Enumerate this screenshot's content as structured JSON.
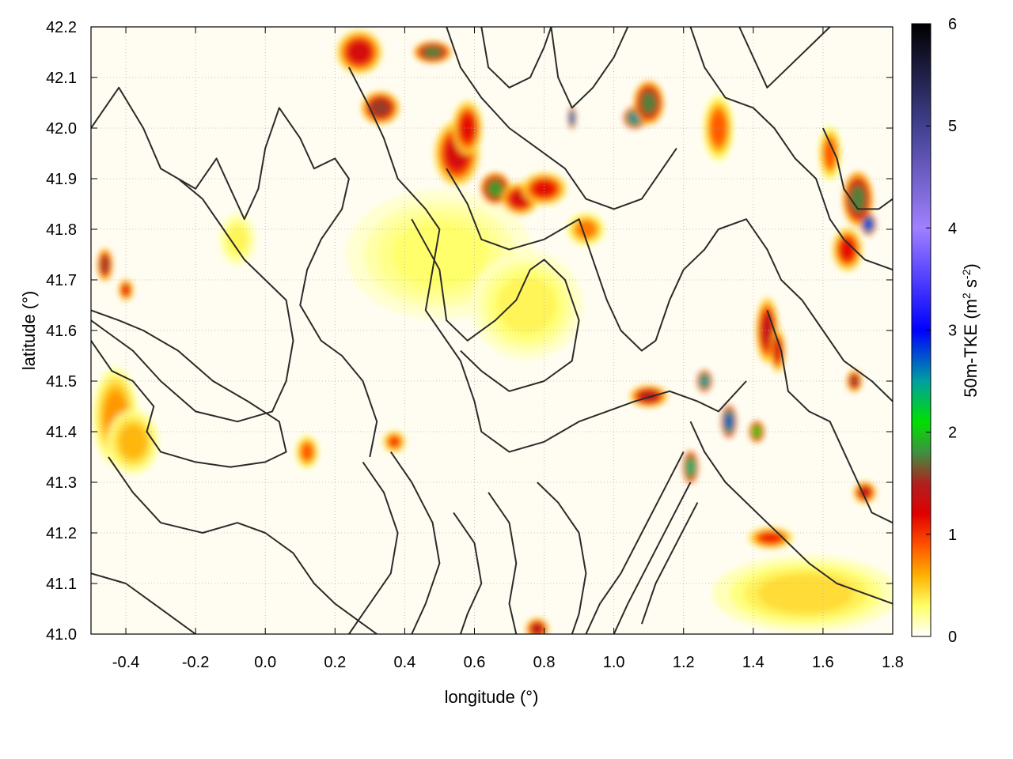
{
  "chart_data": {
    "type": "heatmap",
    "title": "",
    "xlabel": "longitude (°)",
    "ylabel": "latitude (°)",
    "xlim": [
      -0.5,
      1.8
    ],
    "ylim": [
      41.0,
      42.2
    ],
    "x_ticks": [
      -0.4,
      -0.2,
      0.0,
      0.2,
      0.4,
      0.6,
      0.8,
      1.0,
      1.2,
      1.4,
      1.6,
      1.8
    ],
    "x_tick_labels": [
      "-0.4",
      "-0.2",
      "0.0",
      "0.2",
      "0.4",
      "0.6",
      "0.8",
      "1.0",
      "1.2",
      "1.4",
      "1.6",
      "1.8"
    ],
    "y_ticks": [
      41.0,
      41.1,
      41.2,
      41.3,
      41.4,
      41.5,
      41.6,
      41.7,
      41.8,
      41.9,
      42.0,
      42.1,
      42.2
    ],
    "y_tick_labels": [
      "41.0",
      "41.1",
      "41.2",
      "41.3",
      "41.4",
      "41.5",
      "41.6",
      "41.7",
      "41.8",
      "41.9",
      "42.0",
      "42.1",
      "42.2"
    ],
    "grid": true,
    "colorbar": {
      "label": "50m-TKE",
      "unit_prefix": "(m",
      "unit_sup1": "2",
      "unit_mid": " s",
      "unit_sup2": "-2",
      "unit_suffix": ")",
      "range": [
        0,
        6
      ],
      "ticks": [
        0,
        1,
        2,
        3,
        4,
        5,
        6
      ],
      "tick_labels": [
        "0",
        "1",
        "2",
        "3",
        "4",
        "5",
        "6"
      ],
      "stops": [
        {
          "value": 0.0,
          "color": "#ffffff"
        },
        {
          "value": 0.3,
          "color": "#ffff66"
        },
        {
          "value": 0.6,
          "color": "#ffb000"
        },
        {
          "value": 0.9,
          "color": "#ff5000"
        },
        {
          "value": 1.2,
          "color": "#e00000"
        },
        {
          "value": 1.5,
          "color": "#b02020"
        },
        {
          "value": 1.8,
          "color": "#409040"
        },
        {
          "value": 2.1,
          "color": "#00e000"
        },
        {
          "value": 2.5,
          "color": "#00a0a0"
        },
        {
          "value": 3.0,
          "color": "#0000ff"
        },
        {
          "value": 4.0,
          "color": "#a080ff"
        },
        {
          "value": 5.0,
          "color": "#404090"
        },
        {
          "value": 6.0,
          "color": "#000000"
        }
      ]
    },
    "hotspots": [
      {
        "lon": -0.43,
        "lat": 41.43,
        "value": 0.7,
        "rx": 0.06,
        "ry": 0.09
      },
      {
        "lon": -0.38,
        "lat": 41.38,
        "value": 0.6,
        "rx": 0.07,
        "ry": 0.06
      },
      {
        "lon": -0.08,
        "lat": 41.78,
        "value": 0.35,
        "rx": 0.05,
        "ry": 0.05
      },
      {
        "lon": 0.5,
        "lat": 41.75,
        "value": 0.3,
        "rx": 0.25,
        "ry": 0.12
      },
      {
        "lon": 0.75,
        "lat": 41.65,
        "value": 0.35,
        "rx": 0.15,
        "ry": 0.1
      },
      {
        "lon": 0.27,
        "lat": 42.15,
        "value": 1.3,
        "rx": 0.06,
        "ry": 0.04
      },
      {
        "lon": 0.33,
        "lat": 42.04,
        "value": 1.6,
        "rx": 0.05,
        "ry": 0.03
      },
      {
        "lon": 0.48,
        "lat": 42.15,
        "value": 1.8,
        "rx": 0.05,
        "ry": 0.02
      },
      {
        "lon": 0.55,
        "lat": 41.95,
        "value": 1.3,
        "rx": 0.06,
        "ry": 0.06
      },
      {
        "lon": 0.58,
        "lat": 42.0,
        "value": 1.2,
        "rx": 0.04,
        "ry": 0.05
      },
      {
        "lon": 0.66,
        "lat": 41.88,
        "value": 1.9,
        "rx": 0.04,
        "ry": 0.03
      },
      {
        "lon": 0.73,
        "lat": 41.86,
        "value": 1.3,
        "rx": 0.05,
        "ry": 0.03
      },
      {
        "lon": 0.88,
        "lat": 42.02,
        "value": 2.8,
        "rx": 0.01,
        "ry": 0.02
      },
      {
        "lon": 1.06,
        "lat": 42.02,
        "value": 2.6,
        "rx": 0.03,
        "ry": 0.02
      },
      {
        "lon": 1.1,
        "lat": 42.05,
        "value": 1.8,
        "rx": 0.04,
        "ry": 0.04
      },
      {
        "lon": 0.8,
        "lat": 41.88,
        "value": 1.2,
        "rx": 0.06,
        "ry": 0.03
      },
      {
        "lon": -0.46,
        "lat": 41.73,
        "value": 1.6,
        "rx": 0.02,
        "ry": 0.03
      },
      {
        "lon": -0.4,
        "lat": 41.68,
        "value": 1.2,
        "rx": 0.02,
        "ry": 0.02
      },
      {
        "lon": 1.7,
        "lat": 41.86,
        "value": 1.8,
        "rx": 0.04,
        "ry": 0.05
      },
      {
        "lon": 1.73,
        "lat": 41.81,
        "value": 3.0,
        "rx": 0.02,
        "ry": 0.02
      },
      {
        "lon": 1.67,
        "lat": 41.76,
        "value": 1.2,
        "rx": 0.04,
        "ry": 0.04
      },
      {
        "lon": 1.44,
        "lat": 41.6,
        "value": 1.4,
        "rx": 0.03,
        "ry": 0.06
      },
      {
        "lon": 1.47,
        "lat": 41.56,
        "value": 1.3,
        "rx": 0.02,
        "ry": 0.04
      },
      {
        "lon": 1.26,
        "lat": 41.5,
        "value": 2.6,
        "rx": 0.02,
        "ry": 0.02
      },
      {
        "lon": 1.33,
        "lat": 41.42,
        "value": 2.8,
        "rx": 0.02,
        "ry": 0.03
      },
      {
        "lon": 1.41,
        "lat": 41.4,
        "value": 2.1,
        "rx": 0.02,
        "ry": 0.02
      },
      {
        "lon": 1.22,
        "lat": 41.33,
        "value": 2.4,
        "rx": 0.02,
        "ry": 0.03
      },
      {
        "lon": 1.1,
        "lat": 41.47,
        "value": 1.5,
        "rx": 0.05,
        "ry": 0.02
      },
      {
        "lon": 1.69,
        "lat": 41.5,
        "value": 1.6,
        "rx": 0.02,
        "ry": 0.02
      },
      {
        "lon": 1.72,
        "lat": 41.28,
        "value": 1.4,
        "rx": 0.03,
        "ry": 0.02
      },
      {
        "lon": 1.45,
        "lat": 41.19,
        "value": 1.1,
        "rx": 0.06,
        "ry": 0.02
      },
      {
        "lon": 0.78,
        "lat": 41.01,
        "value": 1.5,
        "rx": 0.03,
        "ry": 0.02
      },
      {
        "lon": 0.37,
        "lat": 41.38,
        "value": 1.0,
        "rx": 0.03,
        "ry": 0.02
      },
      {
        "lon": 0.12,
        "lat": 41.36,
        "value": 0.9,
        "rx": 0.03,
        "ry": 0.03
      },
      {
        "lon": 1.55,
        "lat": 41.08,
        "value": 0.45,
        "rx": 0.25,
        "ry": 0.07
      },
      {
        "lon": 0.92,
        "lat": 41.8,
        "value": 0.8,
        "rx": 0.05,
        "ry": 0.03
      },
      {
        "lon": 1.62,
        "lat": 41.95,
        "value": 0.9,
        "rx": 0.03,
        "ry": 0.05
      },
      {
        "lon": 1.3,
        "lat": 42.0,
        "value": 0.9,
        "rx": 0.04,
        "ry": 0.06
      }
    ],
    "contours": [
      [
        [
          -0.5,
          42.0
        ],
        [
          -0.42,
          42.08
        ],
        [
          -0.35,
          42.0
        ],
        [
          -0.3,
          41.92
        ],
        [
          -0.2,
          41.88
        ],
        [
          -0.14,
          41.94
        ],
        [
          -0.1,
          41.88
        ],
        [
          -0.06,
          41.82
        ],
        [
          -0.02,
          41.88
        ],
        [
          0.0,
          41.96
        ],
        [
          0.04,
          42.04
        ],
        [
          0.1,
          41.98
        ],
        [
          0.14,
          41.92
        ],
        [
          0.2,
          41.94
        ],
        [
          0.24,
          41.9
        ],
        [
          0.22,
          41.84
        ],
        [
          0.16,
          41.78
        ],
        [
          0.12,
          41.72
        ],
        [
          0.1,
          41.65
        ],
        [
          0.16,
          41.58
        ],
        [
          0.22,
          41.55
        ],
        [
          0.28,
          41.5
        ],
        [
          0.32,
          41.42
        ],
        [
          0.3,
          41.35
        ]
      ],
      [
        [
          -0.25,
          41.9
        ],
        [
          -0.18,
          41.86
        ],
        [
          -0.12,
          41.8
        ],
        [
          -0.06,
          41.74
        ],
        [
          0.0,
          41.7
        ],
        [
          0.06,
          41.66
        ],
        [
          0.08,
          41.58
        ],
        [
          0.06,
          41.5
        ],
        [
          0.02,
          41.44
        ],
        [
          -0.08,
          41.42
        ],
        [
          -0.2,
          41.44
        ],
        [
          -0.3,
          41.5
        ],
        [
          -0.38,
          41.56
        ],
        [
          -0.46,
          41.6
        ],
        [
          -0.5,
          41.62
        ]
      ],
      [
        [
          -0.5,
          41.58
        ],
        [
          -0.44,
          41.52
        ],
        [
          -0.38,
          41.5
        ],
        [
          -0.32,
          41.45
        ],
        [
          -0.34,
          41.4
        ],
        [
          -0.3,
          41.36
        ],
        [
          -0.2,
          41.34
        ],
        [
          -0.1,
          41.33
        ],
        [
          0.0,
          41.34
        ],
        [
          0.06,
          41.36
        ],
        [
          0.04,
          41.42
        ],
        [
          -0.05,
          41.46
        ],
        [
          -0.15,
          41.5
        ],
        [
          -0.25,
          41.56
        ],
        [
          -0.35,
          41.6
        ],
        [
          -0.42,
          41.62
        ],
        [
          -0.5,
          41.64
        ]
      ],
      [
        [
          0.24,
          42.12
        ],
        [
          0.3,
          42.04
        ],
        [
          0.34,
          41.98
        ],
        [
          0.38,
          41.9
        ],
        [
          0.46,
          41.84
        ],
        [
          0.5,
          41.8
        ],
        [
          0.48,
          41.72
        ],
        [
          0.46,
          41.64
        ],
        [
          0.5,
          41.6
        ],
        [
          0.56,
          41.54
        ],
        [
          0.6,
          41.46
        ],
        [
          0.62,
          41.4
        ],
        [
          0.7,
          41.36
        ],
        [
          0.8,
          41.38
        ],
        [
          0.9,
          41.42
        ],
        [
          0.98,
          41.44
        ],
        [
          1.06,
          41.46
        ],
        [
          1.16,
          41.48
        ],
        [
          1.24,
          41.46
        ],
        [
          1.3,
          41.44
        ],
        [
          1.38,
          41.5
        ]
      ],
      [
        [
          0.52,
          41.92
        ],
        [
          0.58,
          41.85
        ],
        [
          0.62,
          41.78
        ],
        [
          0.7,
          41.76
        ],
        [
          0.8,
          41.78
        ],
        [
          0.9,
          41.82
        ],
        [
          0.94,
          41.74
        ],
        [
          0.98,
          41.66
        ],
        [
          1.02,
          41.6
        ],
        [
          1.08,
          41.56
        ],
        [
          1.12,
          41.58
        ],
        [
          1.16,
          41.66
        ],
        [
          1.2,
          41.72
        ],
        [
          1.26,
          41.76
        ],
        [
          1.3,
          41.8
        ],
        [
          1.38,
          41.82
        ],
        [
          1.44,
          41.76
        ],
        [
          1.48,
          41.7
        ],
        [
          1.54,
          41.66
        ],
        [
          1.6,
          41.6
        ],
        [
          1.66,
          41.54
        ],
        [
          1.74,
          41.5
        ],
        [
          1.8,
          41.46
        ]
      ],
      [
        [
          0.42,
          41.82
        ],
        [
          0.5,
          41.72
        ],
        [
          0.52,
          41.62
        ],
        [
          0.58,
          41.58
        ],
        [
          0.66,
          41.62
        ],
        [
          0.72,
          41.66
        ],
        [
          0.76,
          41.72
        ],
        [
          0.8,
          41.74
        ],
        [
          0.86,
          41.7
        ],
        [
          0.9,
          41.62
        ],
        [
          0.88,
          41.54
        ],
        [
          0.8,
          41.5
        ],
        [
          0.7,
          41.48
        ],
        [
          0.62,
          41.52
        ],
        [
          0.56,
          41.56
        ]
      ],
      [
        [
          0.36,
          41.36
        ],
        [
          0.42,
          41.3
        ],
        [
          0.48,
          41.22
        ],
        [
          0.5,
          41.14
        ],
        [
          0.46,
          41.06
        ],
        [
          0.42,
          41.0
        ]
      ],
      [
        [
          0.28,
          41.34
        ],
        [
          0.34,
          41.28
        ],
        [
          0.38,
          41.2
        ],
        [
          0.36,
          41.12
        ],
        [
          0.3,
          41.06
        ],
        [
          0.24,
          41.0
        ]
      ],
      [
        [
          0.54,
          41.24
        ],
        [
          0.6,
          41.18
        ],
        [
          0.62,
          41.1
        ],
        [
          0.58,
          41.04
        ],
        [
          0.56,
          41.0
        ]
      ],
      [
        [
          0.64,
          41.28
        ],
        [
          0.7,
          41.22
        ],
        [
          0.72,
          41.14
        ],
        [
          0.7,
          41.06
        ],
        [
          0.72,
          41.0
        ]
      ],
      [
        [
          0.78,
          41.3
        ],
        [
          0.84,
          41.26
        ],
        [
          0.9,
          41.2
        ],
        [
          0.92,
          41.12
        ],
        [
          0.9,
          41.04
        ],
        [
          0.88,
          41.0
        ]
      ],
      [
        [
          1.2,
          41.36
        ],
        [
          1.14,
          41.28
        ],
        [
          1.08,
          41.2
        ],
        [
          1.02,
          41.12
        ],
        [
          0.96,
          41.06
        ],
        [
          0.92,
          41.0
        ]
      ],
      [
        [
          1.22,
          41.3
        ],
        [
          1.16,
          41.22
        ],
        [
          1.1,
          41.14
        ],
        [
          1.04,
          41.06
        ],
        [
          1.0,
          41.0
        ]
      ],
      [
        [
          1.24,
          41.26
        ],
        [
          1.18,
          41.18
        ],
        [
          1.12,
          41.1
        ],
        [
          1.08,
          41.02
        ]
      ],
      [
        [
          -0.5,
          41.12
        ],
        [
          -0.4,
          41.1
        ],
        [
          -0.32,
          41.06
        ],
        [
          -0.24,
          41.02
        ],
        [
          -0.2,
          41.0
        ]
      ],
      [
        [
          -0.45,
          41.35
        ],
        [
          -0.38,
          41.28
        ],
        [
          -0.3,
          41.22
        ],
        [
          -0.18,
          41.2
        ],
        [
          -0.08,
          41.22
        ],
        [
          0.0,
          41.2
        ],
        [
          0.08,
          41.16
        ],
        [
          0.14,
          41.1
        ],
        [
          0.2,
          41.06
        ],
        [
          0.28,
          41.02
        ],
        [
          0.32,
          41.0
        ]
      ],
      [
        [
          0.82,
          42.2
        ],
        [
          0.84,
          42.1
        ],
        [
          0.88,
          42.04
        ],
        [
          0.94,
          42.08
        ],
        [
          1.0,
          42.14
        ],
        [
          1.04,
          42.2
        ]
      ],
      [
        [
          0.62,
          42.2
        ],
        [
          0.64,
          42.12
        ],
        [
          0.7,
          42.08
        ],
        [
          0.76,
          42.1
        ],
        [
          0.8,
          42.16
        ],
        [
          0.82,
          42.2
        ]
      ],
      [
        [
          0.52,
          42.2
        ],
        [
          0.56,
          42.12
        ],
        [
          0.62,
          42.06
        ],
        [
          0.7,
          42.0
        ],
        [
          0.78,
          41.96
        ],
        [
          0.86,
          41.92
        ],
        [
          0.92,
          41.86
        ],
        [
          1.0,
          41.84
        ],
        [
          1.08,
          41.86
        ],
        [
          1.14,
          41.92
        ],
        [
          1.18,
          41.96
        ]
      ],
      [
        [
          1.22,
          42.2
        ],
        [
          1.26,
          42.12
        ],
        [
          1.32,
          42.06
        ],
        [
          1.4,
          42.04
        ],
        [
          1.46,
          42.0
        ],
        [
          1.52,
          41.94
        ],
        [
          1.58,
          41.9
        ],
        [
          1.62,
          41.82
        ],
        [
          1.66,
          41.78
        ],
        [
          1.72,
          41.74
        ],
        [
          1.8,
          41.72
        ]
      ],
      [
        [
          1.36,
          42.2
        ],
        [
          1.4,
          42.14
        ],
        [
          1.44,
          42.08
        ],
        [
          1.5,
          42.12
        ],
        [
          1.56,
          42.16
        ],
        [
          1.62,
          42.2
        ]
      ],
      [
        [
          1.6,
          42.0
        ],
        [
          1.64,
          41.94
        ],
        [
          1.66,
          41.88
        ],
        [
          1.7,
          41.84
        ],
        [
          1.76,
          41.84
        ],
        [
          1.8,
          41.86
        ]
      ],
      [
        [
          1.44,
          41.64
        ],
        [
          1.48,
          41.56
        ],
        [
          1.5,
          41.48
        ],
        [
          1.56,
          41.44
        ],
        [
          1.62,
          41.42
        ],
        [
          1.66,
          41.36
        ],
        [
          1.7,
          41.3
        ],
        [
          1.74,
          41.24
        ],
        [
          1.8,
          41.22
        ]
      ],
      [
        [
          1.22,
          41.42
        ],
        [
          1.26,
          41.36
        ],
        [
          1.32,
          41.3
        ],
        [
          1.38,
          41.26
        ],
        [
          1.44,
          41.22
        ],
        [
          1.5,
          41.18
        ],
        [
          1.56,
          41.14
        ],
        [
          1.64,
          41.1
        ],
        [
          1.72,
          41.08
        ],
        [
          1.8,
          41.06
        ]
      ]
    ]
  }
}
